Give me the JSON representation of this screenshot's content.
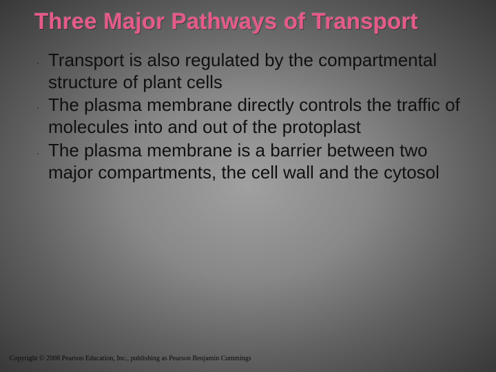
{
  "slide": {
    "title": "Three Major Pathways of Transport",
    "title_color": "#e55a8a",
    "title_fontsize": 33,
    "title_fontweight": "bold",
    "bullets": [
      "Transport is also regulated by the compartmental structure of plant cells",
      "The plasma membrane directly controls the traffic of molecules into and out of the protoplast",
      "The plasma membrane is a barrier between two major compartments, the cell wall and the cytosol"
    ],
    "bullet_marker": "·",
    "bullet_fontsize": 26,
    "bullet_text_color": "#101010",
    "copyright": "Copyright © 2008 Pearson Education, Inc., publishing as Pearson Benjamin Cummings",
    "copyright_fontsize": 10,
    "background": {
      "type": "radial-gradient",
      "inner_color": "#a0a0a0",
      "outer_color": "#383838"
    }
  }
}
